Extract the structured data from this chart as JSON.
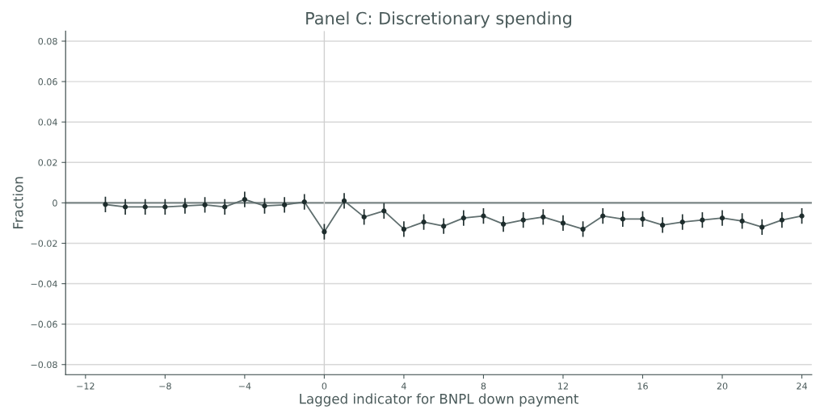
{
  "chart_data": {
    "type": "line",
    "title": "Panel C: Discretionary spending",
    "xlabel": "Lagged indicator for BNPL down payment",
    "ylabel": "Fraction",
    "x": [
      -11,
      -10,
      -9,
      -8,
      -7,
      -6,
      -5,
      -4,
      -3,
      -2,
      -1,
      0,
      1,
      2,
      3,
      4,
      5,
      6,
      7,
      8,
      9,
      10,
      11,
      12,
      13,
      14,
      15,
      16,
      17,
      18,
      19,
      20,
      21,
      22,
      23,
      24
    ],
    "series": [
      {
        "color": "#5f6e6e",
        "values": [
          -0.0008,
          -0.002,
          -0.002,
          -0.002,
          -0.0015,
          -0.001,
          -0.002,
          0.0017,
          -0.0015,
          -0.001,
          0.0005,
          -0.0143,
          0.001,
          -0.007,
          -0.004,
          -0.013,
          -0.0095,
          -0.0115,
          -0.0075,
          -0.0065,
          -0.0105,
          -0.0085,
          -0.007,
          -0.01,
          -0.013,
          -0.0065,
          -0.008,
          -0.008,
          -0.011,
          -0.0095,
          -0.0085,
          -0.0075,
          -0.009,
          -0.012,
          -0.0085,
          -0.0065
        ],
        "errors": [
          0.0035,
          0.0035,
          0.0035,
          0.0035,
          0.0035,
          0.0035,
          0.0035,
          0.0035,
          0.0035,
          0.0035,
          0.0035,
          0.0035,
          0.0035,
          0.0035,
          0.0035,
          0.0035,
          0.0035,
          0.0035,
          0.0035,
          0.0035,
          0.0035,
          0.0035,
          0.0035,
          0.0035,
          0.0035,
          0.0035,
          0.0035,
          0.0035,
          0.0035,
          0.0035,
          0.0035,
          0.0035,
          0.0035,
          0.0035,
          0.0035,
          0.0035
        ]
      }
    ],
    "marker": "circle",
    "grid": "y",
    "xlim": [
      -13,
      24.5
    ],
    "ylim": [
      -0.085,
      0.085
    ],
    "xticks": [
      {
        "value": -12,
        "label": "−12"
      },
      {
        "value": -8,
        "label": "−8"
      },
      {
        "value": -4,
        "label": "−4"
      },
      0,
      4,
      8,
      12,
      16,
      20,
      24
    ],
    "yticks": [
      {
        "value": -0.08,
        "label": "−0.08"
      },
      {
        "value": -0.06,
        "label": "−0.06"
      },
      {
        "value": -0.04,
        "label": "−0.04"
      },
      {
        "value": -0.02,
        "label": "−0.02"
      },
      0,
      0.02,
      0.04,
      0.06,
      0.08
    ],
    "ref_lines": [
      {
        "axis": "y",
        "value": 0,
        "color": "#7a8585"
      },
      {
        "axis": "x",
        "value": 0,
        "color": "#d0d0d0"
      }
    ]
  }
}
